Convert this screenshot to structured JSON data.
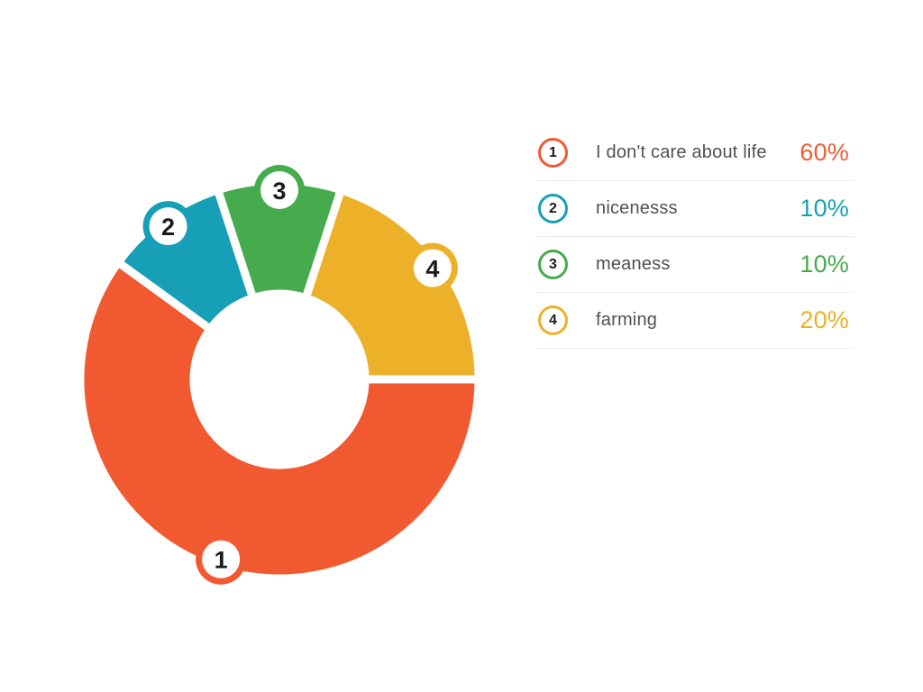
{
  "canvas": {
    "background": "#ffffff"
  },
  "chart_data": {
    "type": "pie",
    "subtype": "donut",
    "title": "",
    "categories": [
      "I don't care about life",
      "nicenesss",
      "meaness",
      "farming"
    ],
    "values": [
      60,
      10,
      10,
      20
    ],
    "percent_labels": [
      "60%",
      "10%",
      "10%",
      "20%"
    ],
    "slice_numbers": [
      "1",
      "2",
      "3",
      "4"
    ],
    "colors": [
      "#F15A31",
      "#179FB8",
      "#45AB4C",
      "#ECB128"
    ],
    "start_angle_deg_from_north": 90,
    "direction": "clockwise",
    "donut_hole": true,
    "grid": false,
    "legend_position": "right",
    "legend_divider_color": "#eaeaea",
    "legend_label_color": "#515151",
    "badge_number_color": "#1b1b1b"
  }
}
